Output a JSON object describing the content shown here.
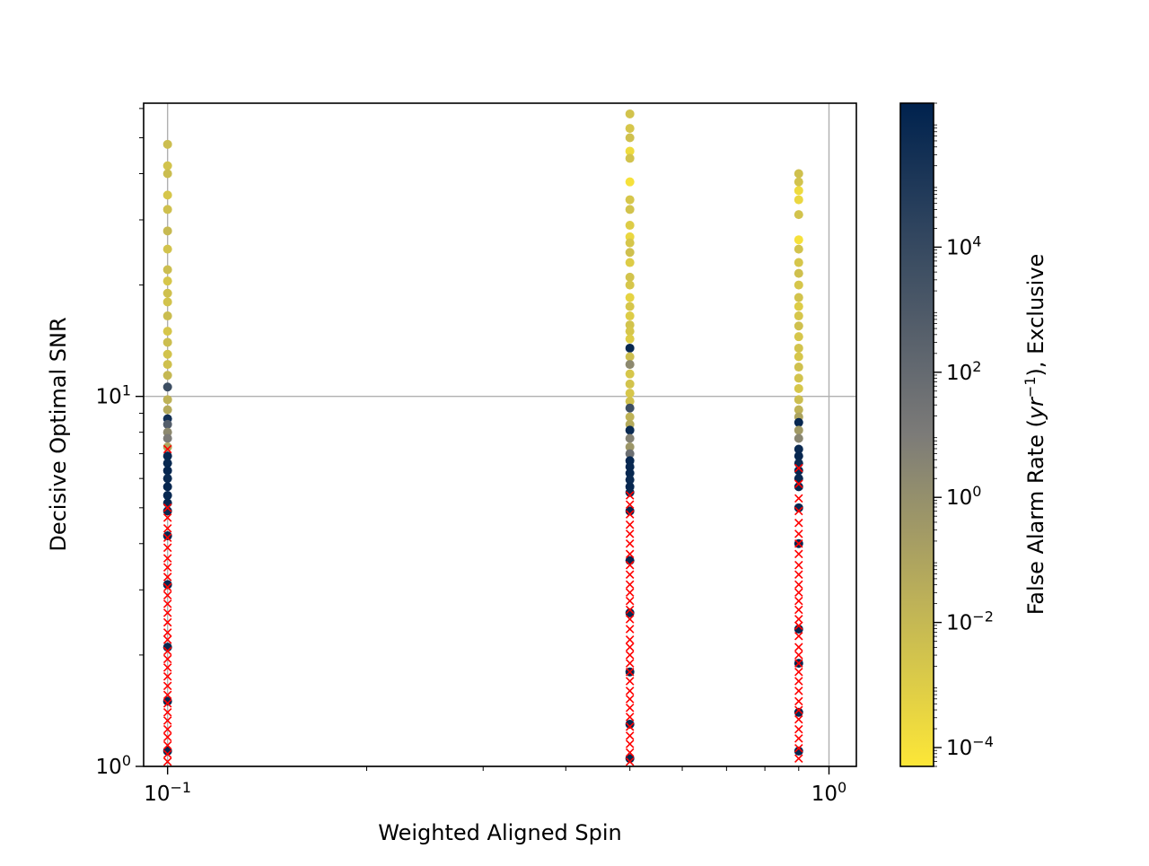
{
  "chart_data": {
    "type": "scatter",
    "title": "",
    "xlabel": "Weighted Aligned Spin",
    "ylabel": "Decisive Optimal SNR",
    "xscale": "log",
    "yscale": "log",
    "xlim": [
      0.092,
      1.1
    ],
    "ylim": [
      1,
      62
    ],
    "grid": true,
    "x_ticks": [
      {
        "value": 0.1,
        "base": "10",
        "exp": "−1"
      },
      {
        "value": 1,
        "base": "10",
        "exp": "0"
      }
    ],
    "y_ticks": [
      {
        "value": 1,
        "base": "10",
        "exp": "0"
      },
      {
        "value": 10,
        "base": "10",
        "exp": "1"
      }
    ],
    "colorbar": {
      "label_prefix": "False Alarm Rate (",
      "label_unit": "yr",
      "label_unit_exp": "−1",
      "label_suffix": "), Exclusive",
      "scale": "log",
      "range": [
        5e-05,
        2000000
      ],
      "colormap": [
        "#fde737",
        "#7c7b78",
        "#00224e"
      ],
      "ticks": [
        {
          "value": 0.0001,
          "base": "10",
          "exp": "−4"
        },
        {
          "value": 0.01,
          "base": "10",
          "exp": "−2"
        },
        {
          "value": 1,
          "base": "10",
          "exp": "0"
        },
        {
          "value": 100,
          "base": "10",
          "exp": "2"
        },
        {
          "value": 10000,
          "base": "10",
          "exp": "4"
        }
      ]
    },
    "series": [
      {
        "marker": "circle",
        "points": [
          {
            "x": 0.1,
            "y": 48,
            "far": 0.005
          },
          {
            "x": 0.1,
            "y": 42,
            "far": 0.003
          },
          {
            "x": 0.1,
            "y": 40,
            "far": 0.006
          },
          {
            "x": 0.1,
            "y": 35,
            "far": 0.002
          },
          {
            "x": 0.1,
            "y": 32,
            "far": 0.004
          },
          {
            "x": 0.1,
            "y": 28,
            "far": 0.008
          },
          {
            "x": 0.1,
            "y": 25,
            "far": 0.003
          },
          {
            "x": 0.1,
            "y": 22,
            "far": 0.005
          },
          {
            "x": 0.1,
            "y": 20.5,
            "far": 0.002
          },
          {
            "x": 0.1,
            "y": 19,
            "far": 0.004
          },
          {
            "x": 0.1,
            "y": 18,
            "far": 0.003
          },
          {
            "x": 0.1,
            "y": 16.5,
            "far": 0.006
          },
          {
            "x": 0.1,
            "y": 15,
            "far": 0.002
          },
          {
            "x": 0.1,
            "y": 14,
            "far": 0.005
          },
          {
            "x": 0.1,
            "y": 13,
            "far": 0.003
          },
          {
            "x": 0.1,
            "y": 12.2,
            "far": 0.004
          },
          {
            "x": 0.1,
            "y": 11.4,
            "far": 0.01
          },
          {
            "x": 0.1,
            "y": 10.6,
            "far": 5000
          },
          {
            "x": 0.1,
            "y": 9.8,
            "far": 0.02
          },
          {
            "x": 0.1,
            "y": 9.2,
            "far": 0.05
          },
          {
            "x": 0.1,
            "y": 8.7,
            "far": 300000
          },
          {
            "x": 0.1,
            "y": 8.4,
            "far": 500
          },
          {
            "x": 0.1,
            "y": 8.0,
            "far": 2
          },
          {
            "x": 0.1,
            "y": 7.7,
            "far": 10
          },
          {
            "x": 0.1,
            "y": 7.3,
            "far": 0.1
          },
          {
            "x": 0.1,
            "y": 6.9,
            "far": 1000000
          },
          {
            "x": 0.1,
            "y": 6.6,
            "far": 800000
          },
          {
            "x": 0.1,
            "y": 6.3,
            "far": 1000000
          },
          {
            "x": 0.1,
            "y": 6.0,
            "far": 600000
          },
          {
            "x": 0.1,
            "y": 5.7,
            "far": 1000000
          },
          {
            "x": 0.1,
            "y": 5.4,
            "far": 900000
          },
          {
            "x": 0.1,
            "y": 5.15,
            "far": 1000000
          },
          {
            "x": 0.1,
            "y": 4.9,
            "far": 700000
          },
          {
            "x": 0.5,
            "y": 58,
            "far": 0.003
          },
          {
            "x": 0.5,
            "y": 53,
            "far": 0.002
          },
          {
            "x": 0.5,
            "y": 50,
            "far": 0.004
          },
          {
            "x": 0.5,
            "y": 46,
            "far": 0.0002
          },
          {
            "x": 0.5,
            "y": 44,
            "far": 0.003
          },
          {
            "x": 0.5,
            "y": 38,
            "far": 0.0001
          },
          {
            "x": 0.5,
            "y": 34,
            "far": 0.002
          },
          {
            "x": 0.5,
            "y": 32,
            "far": 0.003
          },
          {
            "x": 0.5,
            "y": 29,
            "far": 0.001
          },
          {
            "x": 0.5,
            "y": 27,
            "far": 0.0003
          },
          {
            "x": 0.5,
            "y": 26,
            "far": 0.002
          },
          {
            "x": 0.5,
            "y": 24.5,
            "far": 0.004
          },
          {
            "x": 0.5,
            "y": 23,
            "far": 0.001
          },
          {
            "x": 0.5,
            "y": 21,
            "far": 0.003
          },
          {
            "x": 0.5,
            "y": 20,
            "far": 0.002
          },
          {
            "x": 0.5,
            "y": 18.5,
            "far": 0.0005
          },
          {
            "x": 0.5,
            "y": 17.5,
            "far": 0.002
          },
          {
            "x": 0.5,
            "y": 16.5,
            "far": 0.001
          },
          {
            "x": 0.5,
            "y": 15.6,
            "far": 0.003
          },
          {
            "x": 0.5,
            "y": 15.0,
            "far": 0.002
          },
          {
            "x": 0.5,
            "y": 14.3,
            "far": 0.001
          },
          {
            "x": 0.5,
            "y": 13.5,
            "far": 1000000
          },
          {
            "x": 0.5,
            "y": 12.8,
            "far": 0.005
          },
          {
            "x": 0.5,
            "y": 12.2,
            "far": 2
          },
          {
            "x": 0.5,
            "y": 11.5,
            "far": 0.002
          },
          {
            "x": 0.5,
            "y": 10.8,
            "far": 0.003
          },
          {
            "x": 0.5,
            "y": 10.2,
            "far": 0.002
          },
          {
            "x": 0.5,
            "y": 9.7,
            "far": 0.004
          },
          {
            "x": 0.5,
            "y": 9.3,
            "far": 5000
          },
          {
            "x": 0.5,
            "y": 8.8,
            "far": 0.02
          },
          {
            "x": 0.5,
            "y": 8.4,
            "far": 0.05
          },
          {
            "x": 0.5,
            "y": 8.1,
            "far": 800000
          },
          {
            "x": 0.5,
            "y": 7.7,
            "far": 5
          },
          {
            "x": 0.5,
            "y": 7.3,
            "far": 0.5
          },
          {
            "x": 0.5,
            "y": 7.0,
            "far": 50
          },
          {
            "x": 0.5,
            "y": 6.7,
            "far": 1000000
          },
          {
            "x": 0.5,
            "y": 6.45,
            "far": 900000
          },
          {
            "x": 0.5,
            "y": 6.2,
            "far": 1000000
          },
          {
            "x": 0.5,
            "y": 5.95,
            "far": 700000
          },
          {
            "x": 0.5,
            "y": 5.7,
            "far": 1000000
          },
          {
            "x": 0.5,
            "y": 5.5,
            "far": 800000
          },
          {
            "x": 0.9,
            "y": 40,
            "far": 0.004
          },
          {
            "x": 0.9,
            "y": 38,
            "far": 0.003
          },
          {
            "x": 0.9,
            "y": 36,
            "far": 0.0002
          },
          {
            "x": 0.9,
            "y": 34,
            "far": 0.0003
          },
          {
            "x": 0.9,
            "y": 31,
            "far": 0.003
          },
          {
            "x": 0.9,
            "y": 26.5,
            "far": 0.0001
          },
          {
            "x": 0.9,
            "y": 25,
            "far": 0.003
          },
          {
            "x": 0.9,
            "y": 23,
            "far": 0.002
          },
          {
            "x": 0.9,
            "y": 21.5,
            "far": 0.004
          },
          {
            "x": 0.9,
            "y": 20,
            "far": 0.002
          },
          {
            "x": 0.9,
            "y": 18.5,
            "far": 0.003
          },
          {
            "x": 0.9,
            "y": 17.5,
            "far": 0.001
          },
          {
            "x": 0.9,
            "y": 16.5,
            "far": 0.002
          },
          {
            "x": 0.9,
            "y": 15.5,
            "far": 0.004
          },
          {
            "x": 0.9,
            "y": 14.5,
            "far": 0.002
          },
          {
            "x": 0.9,
            "y": 13.5,
            "far": 0.003
          },
          {
            "x": 0.9,
            "y": 12.8,
            "far": 0.002
          },
          {
            "x": 0.9,
            "y": 12.0,
            "far": 0.004
          },
          {
            "x": 0.9,
            "y": 11.2,
            "far": 0.003
          },
          {
            "x": 0.9,
            "y": 10.5,
            "far": 0.002
          },
          {
            "x": 0.9,
            "y": 9.8,
            "far": 0.005
          },
          {
            "x": 0.9,
            "y": 9.2,
            "far": 0.02
          },
          {
            "x": 0.9,
            "y": 8.8,
            "far": 0.1
          },
          {
            "x": 0.9,
            "y": 8.5,
            "far": 1000000
          },
          {
            "x": 0.9,
            "y": 8.1,
            "far": 0.3
          },
          {
            "x": 0.9,
            "y": 7.7,
            "far": 3
          },
          {
            "x": 0.9,
            "y": 7.2,
            "far": 700000
          },
          {
            "x": 0.9,
            "y": 6.9,
            "far": 1000000
          },
          {
            "x": 0.9,
            "y": 6.6,
            "far": 600000
          },
          {
            "x": 0.9,
            "y": 6.3,
            "far": 1000000
          },
          {
            "x": 0.9,
            "y": 6.0,
            "far": 800000
          },
          {
            "x": 0.9,
            "y": 5.7,
            "far": 1000000
          },
          {
            "x": 0.1,
            "y": 4.2,
            "far": 1000000
          },
          {
            "x": 0.1,
            "y": 3.1,
            "far": 1000000
          },
          {
            "x": 0.1,
            "y": 2.1,
            "far": 1000000
          },
          {
            "x": 0.1,
            "y": 1.5,
            "far": 1000000
          },
          {
            "x": 0.1,
            "y": 1.1,
            "far": 1000000
          },
          {
            "x": 0.5,
            "y": 4.9,
            "far": 1000000
          },
          {
            "x": 0.5,
            "y": 3.6,
            "far": 1000000
          },
          {
            "x": 0.5,
            "y": 2.6,
            "far": 1000000
          },
          {
            "x": 0.5,
            "y": 1.8,
            "far": 1000000
          },
          {
            "x": 0.5,
            "y": 1.3,
            "far": 1000000
          },
          {
            "x": 0.5,
            "y": 1.05,
            "far": 1000000
          },
          {
            "x": 0.9,
            "y": 5.0,
            "far": 1000000
          },
          {
            "x": 0.9,
            "y": 4.0,
            "far": 1000000
          },
          {
            "x": 0.9,
            "y": 2.35,
            "far": 1000000
          },
          {
            "x": 0.9,
            "y": 1.9,
            "far": 1000000
          },
          {
            "x": 0.9,
            "y": 1.4,
            "far": 1000000
          },
          {
            "x": 0.9,
            "y": 1.1,
            "far": 1000000
          }
        ]
      },
      {
        "marker": "x",
        "color": "#ff0000",
        "points": [
          {
            "x": 0.1,
            "y": 7.2
          },
          {
            "x": 0.1,
            "y": 5.0
          },
          {
            "x": 0.1,
            "y": 4.7
          },
          {
            "x": 0.1,
            "y": 4.4
          },
          {
            "x": 0.1,
            "y": 4.15
          },
          {
            "x": 0.1,
            "y": 3.9
          },
          {
            "x": 0.1,
            "y": 3.65
          },
          {
            "x": 0.1,
            "y": 3.45
          },
          {
            "x": 0.1,
            "y": 3.25
          },
          {
            "x": 0.1,
            "y": 3.05
          },
          {
            "x": 0.1,
            "y": 2.9
          },
          {
            "x": 0.1,
            "y": 2.75
          },
          {
            "x": 0.1,
            "y": 2.6
          },
          {
            "x": 0.1,
            "y": 2.45
          },
          {
            "x": 0.1,
            "y": 2.3
          },
          {
            "x": 0.1,
            "y": 2.2
          },
          {
            "x": 0.1,
            "y": 2.05
          },
          {
            "x": 0.1,
            "y": 1.95
          },
          {
            "x": 0.1,
            "y": 1.85
          },
          {
            "x": 0.1,
            "y": 1.75
          },
          {
            "x": 0.1,
            "y": 1.65
          },
          {
            "x": 0.1,
            "y": 1.56
          },
          {
            "x": 0.1,
            "y": 1.48
          },
          {
            "x": 0.1,
            "y": 1.4
          },
          {
            "x": 0.1,
            "y": 1.33
          },
          {
            "x": 0.1,
            "y": 1.26
          },
          {
            "x": 0.1,
            "y": 1.2
          },
          {
            "x": 0.1,
            "y": 1.14
          },
          {
            "x": 0.1,
            "y": 1.08
          },
          {
            "x": 0.1,
            "y": 1.03
          },
          {
            "x": 0.5,
            "y": 5.4
          },
          {
            "x": 0.5,
            "y": 5.1
          },
          {
            "x": 0.5,
            "y": 4.8
          },
          {
            "x": 0.5,
            "y": 4.5
          },
          {
            "x": 0.5,
            "y": 4.25
          },
          {
            "x": 0.5,
            "y": 4.0
          },
          {
            "x": 0.5,
            "y": 3.75
          },
          {
            "x": 0.5,
            "y": 3.5
          },
          {
            "x": 0.5,
            "y": 3.3
          },
          {
            "x": 0.5,
            "y": 3.1
          },
          {
            "x": 0.5,
            "y": 2.95
          },
          {
            "x": 0.5,
            "y": 2.8
          },
          {
            "x": 0.5,
            "y": 2.65
          },
          {
            "x": 0.5,
            "y": 2.5
          },
          {
            "x": 0.5,
            "y": 2.35
          },
          {
            "x": 0.5,
            "y": 2.2
          },
          {
            "x": 0.5,
            "y": 2.1
          },
          {
            "x": 0.5,
            "y": 2.0
          },
          {
            "x": 0.5,
            "y": 1.9
          },
          {
            "x": 0.5,
            "y": 1.8
          },
          {
            "x": 0.5,
            "y": 1.7
          },
          {
            "x": 0.5,
            "y": 1.6
          },
          {
            "x": 0.5,
            "y": 1.52
          },
          {
            "x": 0.5,
            "y": 1.44
          },
          {
            "x": 0.5,
            "y": 1.36
          },
          {
            "x": 0.5,
            "y": 1.28
          },
          {
            "x": 0.5,
            "y": 1.21
          },
          {
            "x": 0.5,
            "y": 1.15
          },
          {
            "x": 0.5,
            "y": 1.09
          },
          {
            "x": 0.5,
            "y": 1.03
          },
          {
            "x": 0.9,
            "y": 6.4
          },
          {
            "x": 0.9,
            "y": 5.8
          },
          {
            "x": 0.9,
            "y": 5.3
          },
          {
            "x": 0.9,
            "y": 4.9
          },
          {
            "x": 0.9,
            "y": 4.55
          },
          {
            "x": 0.9,
            "y": 4.25
          },
          {
            "x": 0.9,
            "y": 4.0
          },
          {
            "x": 0.9,
            "y": 3.75
          },
          {
            "x": 0.9,
            "y": 3.5
          },
          {
            "x": 0.9,
            "y": 3.3
          },
          {
            "x": 0.9,
            "y": 3.1
          },
          {
            "x": 0.9,
            "y": 2.95
          },
          {
            "x": 0.9,
            "y": 2.8
          },
          {
            "x": 0.9,
            "y": 2.65
          },
          {
            "x": 0.9,
            "y": 2.5
          },
          {
            "x": 0.9,
            "y": 2.4
          },
          {
            "x": 0.9,
            "y": 2.25
          },
          {
            "x": 0.9,
            "y": 2.1
          },
          {
            "x": 0.9,
            "y": 2.0
          },
          {
            "x": 0.9,
            "y": 1.9
          },
          {
            "x": 0.9,
            "y": 1.8
          },
          {
            "x": 0.9,
            "y": 1.7
          },
          {
            "x": 0.9,
            "y": 1.6
          },
          {
            "x": 0.9,
            "y": 1.5
          },
          {
            "x": 0.9,
            "y": 1.42
          },
          {
            "x": 0.9,
            "y": 1.34
          },
          {
            "x": 0.9,
            "y": 1.26
          },
          {
            "x": 0.9,
            "y": 1.19
          },
          {
            "x": 0.9,
            "y": 1.12
          },
          {
            "x": 0.9,
            "y": 1.05
          }
        ]
      }
    ]
  }
}
